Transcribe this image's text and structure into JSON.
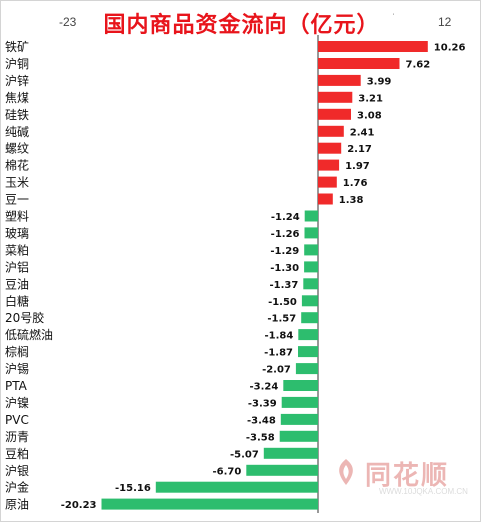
{
  "chart_data": {
    "type": "bar",
    "orientation": "horizontal",
    "title": "国内商品资金流向（亿元）",
    "xlim": [
      -23,
      12
    ],
    "x_ticks": [
      "-23",
      "12"
    ],
    "categories": [
      "铁矿",
      "沪铜",
      "沪锌",
      "焦煤",
      "硅铁",
      "纯碱",
      "螺纹",
      "棉花",
      "玉米",
      "豆一",
      "塑料",
      "玻璃",
      "菜粕",
      "沪铝",
      "豆油",
      "白糖",
      "20号胶",
      "低硫燃油",
      "棕榈",
      "沪锡",
      "PTA",
      "沪镍",
      "PVC",
      "沥青",
      "豆粕",
      "沪银",
      "沪金",
      "原油"
    ],
    "values": [
      10.26,
      7.62,
      3.99,
      3.21,
      3.08,
      2.41,
      2.17,
      1.97,
      1.76,
      1.38,
      -1.24,
      -1.26,
      -1.29,
      -1.3,
      -1.37,
      -1.5,
      -1.57,
      -1.84,
      -1.87,
      -2.07,
      -3.24,
      -3.39,
      -3.48,
      -3.58,
      -5.07,
      -6.7,
      -15.16,
      -20.23
    ],
    "value_labels": [
      "10.26",
      "7.62",
      "3.99",
      "3.21",
      "3.08",
      "2.41",
      "2.17",
      "1.97",
      "1.76",
      "1.38",
      "-1.24",
      "-1.26",
      "-1.29",
      "-1.30",
      "-1.37",
      "-1.50",
      "-1.57",
      "-1.84",
      "-1.87",
      "-2.07",
      "-3.24",
      "-3.39",
      "-3.48",
      "-3.58",
      "-5.07",
      "-6.70",
      "-15.16",
      "-20.23"
    ],
    "colors": {
      "positive": "#f02a2a",
      "negative": "#2dbd6e"
    },
    "grid": false
  },
  "watermark": {
    "brand": "同花顺",
    "url": "WWW.10JQKA.COM.CN"
  }
}
